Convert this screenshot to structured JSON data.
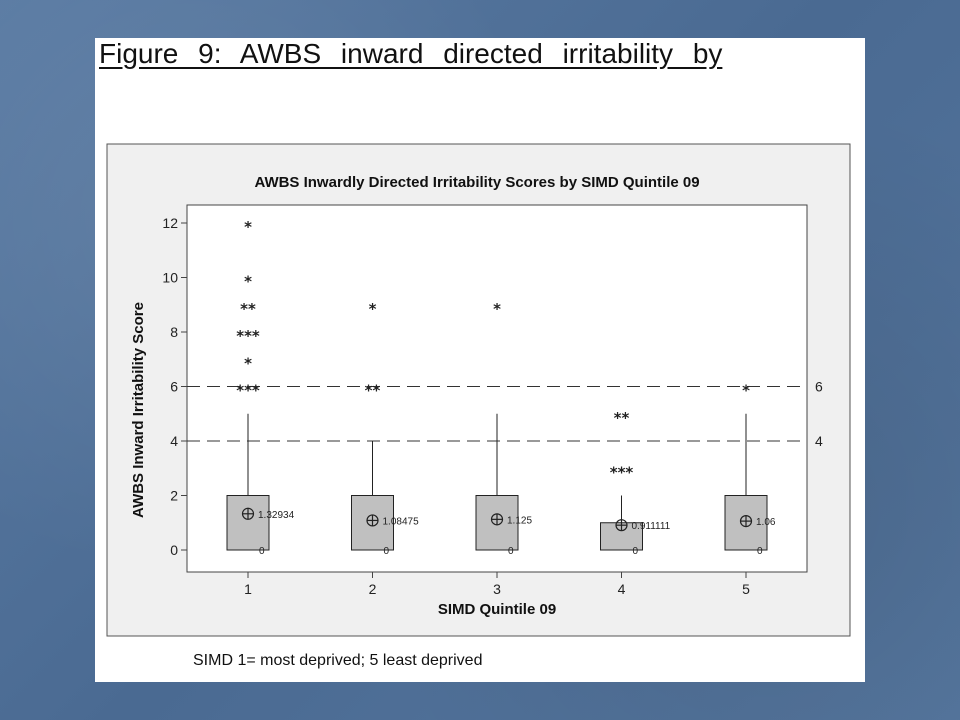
{
  "slide": {
    "heading": "Figure 9: AWBS inward directed irritability by",
    "caption": "SIMD 1= most deprived; 5 least deprived"
  },
  "chart_data": {
    "type": "box",
    "title": "AWBS Inwardly Directed Irritability Scores by SIMD Quintile 09",
    "xlabel": "SIMD Quintile 09",
    "ylabel": "AWBS Inward Irritability Score",
    "ylim": [
      -0.8,
      13
    ],
    "yticks": [
      0,
      2,
      4,
      6,
      8,
      10,
      12
    ],
    "categories": [
      "1",
      "2",
      "3",
      "4",
      "5"
    ],
    "reference_lines": [
      {
        "value": 6,
        "label": "6",
        "style": "dashed"
      },
      {
        "value": 4,
        "label": "4",
        "style": "dashed"
      }
    ],
    "boxes": [
      {
        "category": "1",
        "q1": 0,
        "median": 0,
        "q3": 2,
        "whisker_low": 0,
        "whisker_high": 5,
        "mean": 1.32934,
        "mean_label": "1.32934",
        "median_label": "0",
        "outliers": [
          {
            "y": 12,
            "count": 1
          },
          {
            "y": 10,
            "count": 1
          },
          {
            "y": 9,
            "count": 2
          },
          {
            "y": 8,
            "count": 3
          },
          {
            "y": 7,
            "count": 1
          },
          {
            "y": 6,
            "count": 3
          }
        ]
      },
      {
        "category": "2",
        "q1": 0,
        "median": 0,
        "q3": 2,
        "whisker_low": 0,
        "whisker_high": 4,
        "mean": 1.08475,
        "mean_label": "1.08475",
        "median_label": "0",
        "outliers": [
          {
            "y": 9,
            "count": 1
          },
          {
            "y": 6,
            "count": 2
          }
        ]
      },
      {
        "category": "3",
        "q1": 0,
        "median": 0,
        "q3": 2,
        "whisker_low": 0,
        "whisker_high": 5,
        "mean": 1.125,
        "mean_label": "1.125",
        "median_label": "0",
        "outliers": [
          {
            "y": 9,
            "count": 1
          }
        ]
      },
      {
        "category": "4",
        "q1": 0,
        "median": 0,
        "q3": 1,
        "whisker_low": 0,
        "whisker_high": 2,
        "mean": 0.911111,
        "mean_label": "0.911111",
        "median_label": "0",
        "outliers": [
          {
            "y": 5,
            "count": 2
          },
          {
            "y": 3,
            "count": 3
          }
        ]
      },
      {
        "category": "5",
        "q1": 0,
        "median": 0,
        "q3": 2,
        "whisker_low": 0,
        "whisker_high": 5,
        "mean": 1.06,
        "mean_label": "1.06",
        "median_label": "0",
        "outliers": [
          {
            "y": 6,
            "count": 1
          }
        ]
      }
    ],
    "colors": {
      "box_fill": "#c0c0c0",
      "frame_bg": "#f0f0f0",
      "stroke": "#222222"
    }
  }
}
